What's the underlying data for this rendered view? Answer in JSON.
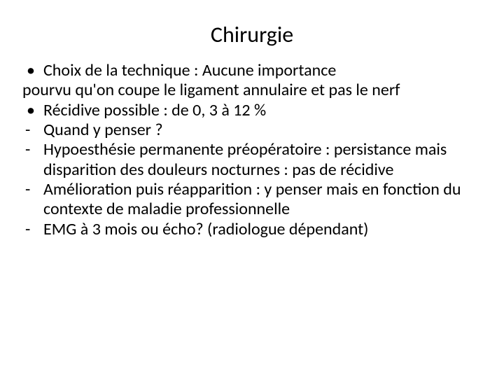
{
  "slide": {
    "title": "Chirurgie",
    "lines": [
      {
        "marker": "•",
        "markerType": "bullet",
        "text": "Choix de la technique : Aucune importance"
      },
      {
        "marker": "",
        "markerType": "none",
        "text": " pourvu qu'on coupe le ligament annulaire et pas le nerf"
      },
      {
        "marker": "•",
        "markerType": "bullet",
        "text": "Récidive possible : de 0, 3 à 12 %"
      },
      {
        "marker": "-",
        "markerType": "dash",
        "text": "Quand y penser ?"
      },
      {
        "marker": "-",
        "markerType": "dash",
        "text": "Hypoesthésie permanente préopératoire : persistance mais disparition des douleurs nocturnes : pas de récidive"
      },
      {
        "marker": "-",
        "markerType": "dash",
        "text": "Amélioration puis réapparition : y penser mais en fonction du contexte de maladie professionnelle"
      },
      {
        "marker": "-",
        "markerType": "dash",
        "text": "EMG à 3 mois ou écho? (radiologue dépendant)"
      }
    ]
  },
  "style": {
    "background": "#ffffff",
    "text_color": "#000000",
    "title_fontsize": 32,
    "body_fontsize": 24,
    "font_family": "Calibri"
  }
}
